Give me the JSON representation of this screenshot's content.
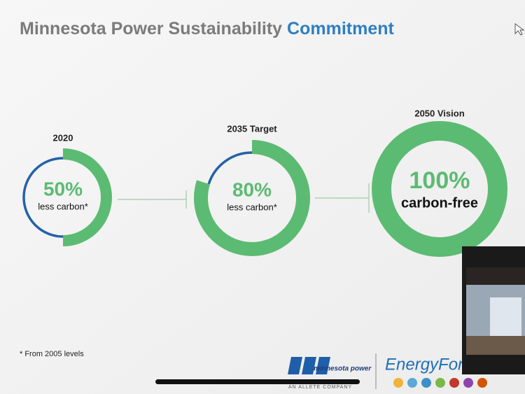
{
  "header": {
    "title": "Minnesota Power Sustainability",
    "title_highlight": "Commitment"
  },
  "milestones": [
    {
      "label": "2020",
      "value": 50,
      "value_label": "50%",
      "caption": "less carbon*"
    },
    {
      "label": "2035 Target",
      "value": 80,
      "value_label": "80%",
      "caption": "less carbon*"
    },
    {
      "label": "2050 Vision",
      "value": 100,
      "value_label": "100%",
      "caption": "carbon-free"
    }
  ],
  "footnote": "* From 2005 levels",
  "logos": {
    "company": "minnesota power",
    "parent": "AN ALLETE COMPANY",
    "partner": "EnergyFor"
  }
}
